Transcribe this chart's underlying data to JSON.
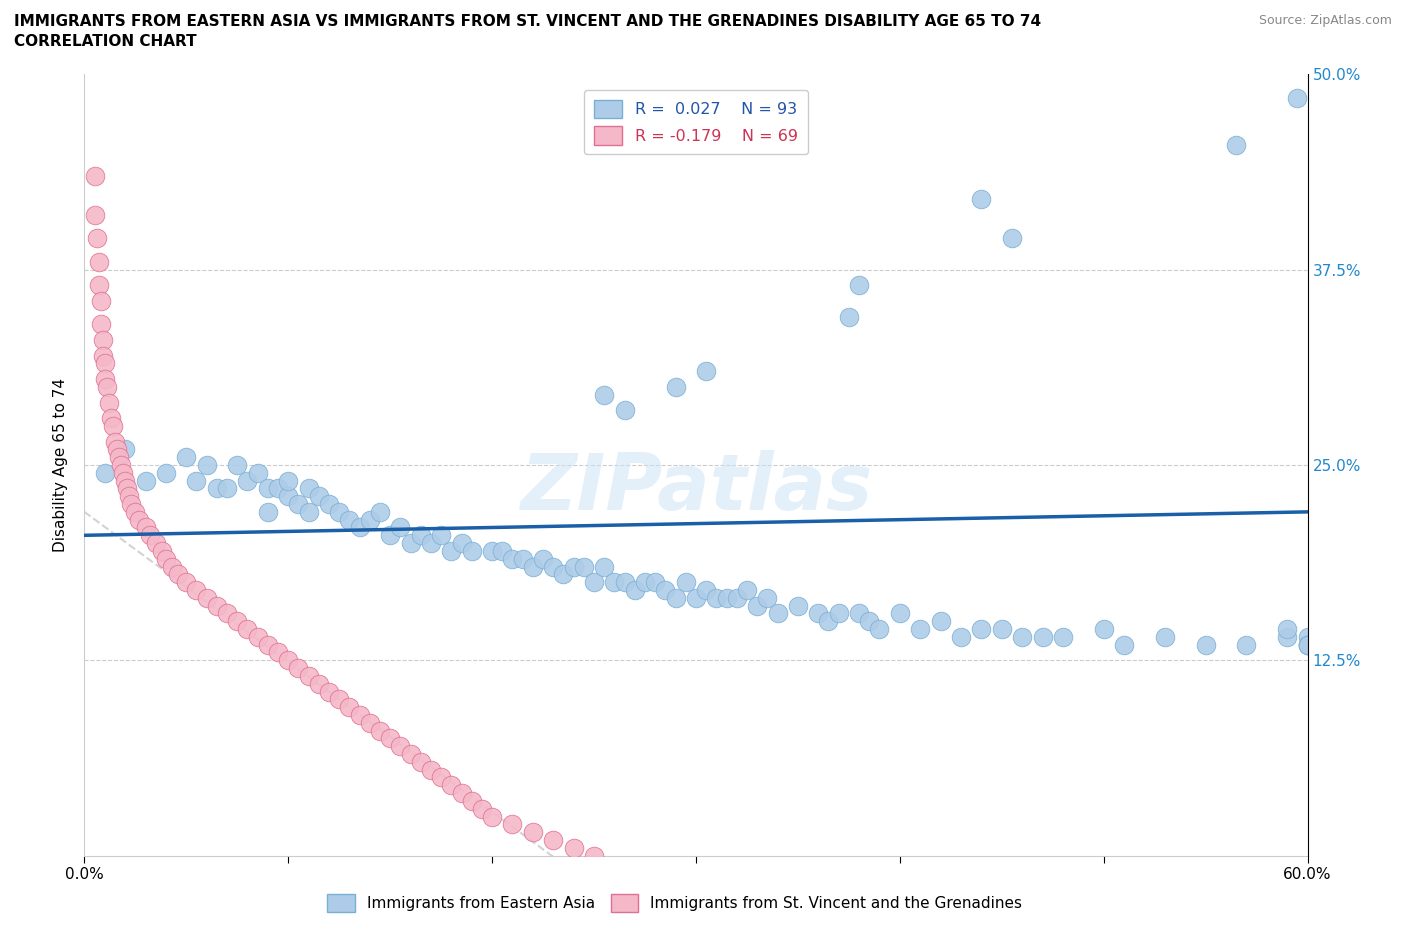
{
  "title_line1": "IMMIGRANTS FROM EASTERN ASIA VS IMMIGRANTS FROM ST. VINCENT AND THE GRENADINES DISABILITY AGE 65 TO 74",
  "title_line2": "CORRELATION CHART",
  "source_text": "Source: ZipAtlas.com",
  "ylabel": "Disability Age 65 to 74",
  "xlim": [
    0.0,
    0.6
  ],
  "ylim": [
    0.0,
    0.5
  ],
  "R1": 0.027,
  "N1": 93,
  "R2": -0.179,
  "N2": 69,
  "color_blue": "#aecce8",
  "color_blue_edge": "#7aafd4",
  "color_blue_line": "#1a5fa8",
  "color_pink": "#f4b8c8",
  "color_pink_edge": "#e07090",
  "color_pink_line": "#c8c8c8",
  "watermark": "ZIPatlas",
  "legend_labels": [
    "Immigrants from Eastern Asia",
    "Immigrants from St. Vincent and the Grenadines"
  ],
  "blue_x": [
    0.01,
    0.02,
    0.03,
    0.04,
    0.05,
    0.055,
    0.06,
    0.065,
    0.07,
    0.075,
    0.08,
    0.085,
    0.09,
    0.09,
    0.095,
    0.1,
    0.1,
    0.105,
    0.11,
    0.11,
    0.115,
    0.12,
    0.125,
    0.13,
    0.135,
    0.14,
    0.145,
    0.15,
    0.155,
    0.16,
    0.165,
    0.17,
    0.175,
    0.18,
    0.185,
    0.19,
    0.2,
    0.205,
    0.21,
    0.215,
    0.22,
    0.225,
    0.23,
    0.235,
    0.24,
    0.245,
    0.25,
    0.255,
    0.26,
    0.265,
    0.27,
    0.275,
    0.28,
    0.285,
    0.29,
    0.295,
    0.3,
    0.305,
    0.31,
    0.315,
    0.32,
    0.325,
    0.33,
    0.335,
    0.34,
    0.35,
    0.36,
    0.365,
    0.37,
    0.38,
    0.385,
    0.39,
    0.4,
    0.41,
    0.42,
    0.43,
    0.44,
    0.45,
    0.46,
    0.47,
    0.48,
    0.5,
    0.51,
    0.53,
    0.55,
    0.57,
    0.59,
    0.59,
    0.6,
    0.6,
    0.6,
    0.6,
    0.6
  ],
  "blue_y": [
    0.245,
    0.26,
    0.24,
    0.245,
    0.255,
    0.24,
    0.25,
    0.235,
    0.235,
    0.25,
    0.24,
    0.245,
    0.235,
    0.22,
    0.235,
    0.23,
    0.24,
    0.225,
    0.235,
    0.22,
    0.23,
    0.225,
    0.22,
    0.215,
    0.21,
    0.215,
    0.22,
    0.205,
    0.21,
    0.2,
    0.205,
    0.2,
    0.205,
    0.195,
    0.2,
    0.195,
    0.195,
    0.195,
    0.19,
    0.19,
    0.185,
    0.19,
    0.185,
    0.18,
    0.185,
    0.185,
    0.175,
    0.185,
    0.175,
    0.175,
    0.17,
    0.175,
    0.175,
    0.17,
    0.165,
    0.175,
    0.165,
    0.17,
    0.165,
    0.165,
    0.165,
    0.17,
    0.16,
    0.165,
    0.155,
    0.16,
    0.155,
    0.15,
    0.155,
    0.155,
    0.15,
    0.145,
    0.155,
    0.145,
    0.15,
    0.14,
    0.145,
    0.145,
    0.14,
    0.14,
    0.14,
    0.145,
    0.135,
    0.14,
    0.135,
    0.135,
    0.14,
    0.145,
    0.14,
    0.135,
    0.135,
    0.135,
    0.135
  ],
  "blue_outliers_x": [
    0.595,
    0.565,
    0.44,
    0.455,
    0.38,
    0.375,
    0.305,
    0.29,
    0.255,
    0.265
  ],
  "blue_outliers_y": [
    0.485,
    0.455,
    0.42,
    0.395,
    0.365,
    0.345,
    0.31,
    0.3,
    0.295,
    0.285
  ],
  "pink_x": [
    0.005,
    0.005,
    0.006,
    0.007,
    0.007,
    0.008,
    0.008,
    0.009,
    0.009,
    0.01,
    0.01,
    0.011,
    0.012,
    0.013,
    0.014,
    0.015,
    0.016,
    0.017,
    0.018,
    0.019,
    0.02,
    0.021,
    0.022,
    0.023,
    0.025,
    0.027,
    0.03,
    0.032,
    0.035,
    0.038,
    0.04,
    0.043,
    0.046,
    0.05,
    0.055,
    0.06,
    0.065,
    0.07,
    0.075,
    0.08,
    0.085,
    0.09,
    0.095,
    0.1,
    0.105,
    0.11,
    0.115,
    0.12,
    0.125,
    0.13,
    0.135,
    0.14,
    0.145,
    0.15,
    0.155,
    0.16,
    0.165,
    0.17,
    0.175,
    0.18,
    0.185,
    0.19,
    0.195,
    0.2,
    0.21,
    0.22,
    0.23,
    0.24,
    0.25
  ],
  "pink_y": [
    0.435,
    0.41,
    0.395,
    0.38,
    0.365,
    0.355,
    0.34,
    0.33,
    0.32,
    0.315,
    0.305,
    0.3,
    0.29,
    0.28,
    0.275,
    0.265,
    0.26,
    0.255,
    0.25,
    0.245,
    0.24,
    0.235,
    0.23,
    0.225,
    0.22,
    0.215,
    0.21,
    0.205,
    0.2,
    0.195,
    0.19,
    0.185,
    0.18,
    0.175,
    0.17,
    0.165,
    0.16,
    0.155,
    0.15,
    0.145,
    0.14,
    0.135,
    0.13,
    0.125,
    0.12,
    0.115,
    0.11,
    0.105,
    0.1,
    0.095,
    0.09,
    0.085,
    0.08,
    0.075,
    0.07,
    0.065,
    0.06,
    0.055,
    0.05,
    0.045,
    0.04,
    0.035,
    0.03,
    0.025,
    0.02,
    0.015,
    0.01,
    0.005,
    0.0
  ]
}
